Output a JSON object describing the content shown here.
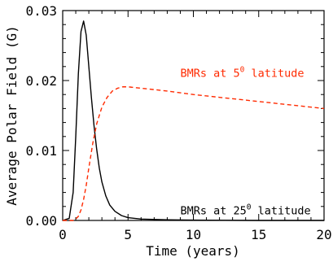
{
  "chart_data": {
    "type": "line",
    "title": "",
    "xlabel": "Time (years)",
    "ylabel": "Average Polar Field (G)",
    "xlim": [
      0,
      20
    ],
    "ylim": [
      0,
      0.03
    ],
    "xticks": [
      "0",
      "5",
      "10",
      "15",
      "20"
    ],
    "yticks": [
      "0.00",
      "0.01",
      "0.02",
      "0.03"
    ],
    "grid": false,
    "legend": "none",
    "series": [
      {
        "line_style": "solid",
        "color": "#000000",
        "x": [
          0,
          0.5,
          0.8,
          1.0,
          1.2,
          1.4,
          1.6,
          1.8,
          2.0,
          2.2,
          2.4,
          2.6,
          2.8,
          3.0,
          3.3,
          3.6,
          4.0,
          4.5,
          5.0,
          6.0,
          8.0,
          10,
          15,
          20
        ],
        "y": [
          0,
          0.0003,
          0.004,
          0.012,
          0.021,
          0.027,
          0.0285,
          0.0265,
          0.022,
          0.0175,
          0.0135,
          0.0102,
          0.0075,
          0.0055,
          0.0035,
          0.0022,
          0.0013,
          0.0007,
          0.0004,
          0.0002,
          0.0001,
          5e-05,
          0,
          0
        ]
      },
      {
        "line_style": "dashed",
        "color": "#ff2a00",
        "x": [
          0,
          0.8,
          1.0,
          1.2,
          1.4,
          1.6,
          1.8,
          2.0,
          2.3,
          2.6,
          3.0,
          3.4,
          3.8,
          4.2,
          4.6,
          5.0,
          5.5,
          6,
          8,
          10,
          12,
          14,
          16,
          18,
          20
        ],
        "y": [
          0,
          0,
          0.0002,
          0.0006,
          0.0015,
          0.003,
          0.005,
          0.0075,
          0.011,
          0.0138,
          0.0162,
          0.0176,
          0.0185,
          0.0189,
          0.0191,
          0.0191,
          0.019,
          0.0189,
          0.0185,
          0.018,
          0.0176,
          0.0172,
          0.0168,
          0.0164,
          0.016
        ]
      }
    ],
    "annotations": [
      {
        "prefix": "BMRs at 5",
        "sup": "0",
        "suffix": " latitude",
        "x": 9.0,
        "y": 0.0205,
        "color": "#ff2a00"
      },
      {
        "prefix": "BMRs at 25",
        "sup": "0",
        "suffix": " latitude",
        "x": 9.0,
        "y": 0.0009,
        "color": "#000000"
      }
    ]
  }
}
